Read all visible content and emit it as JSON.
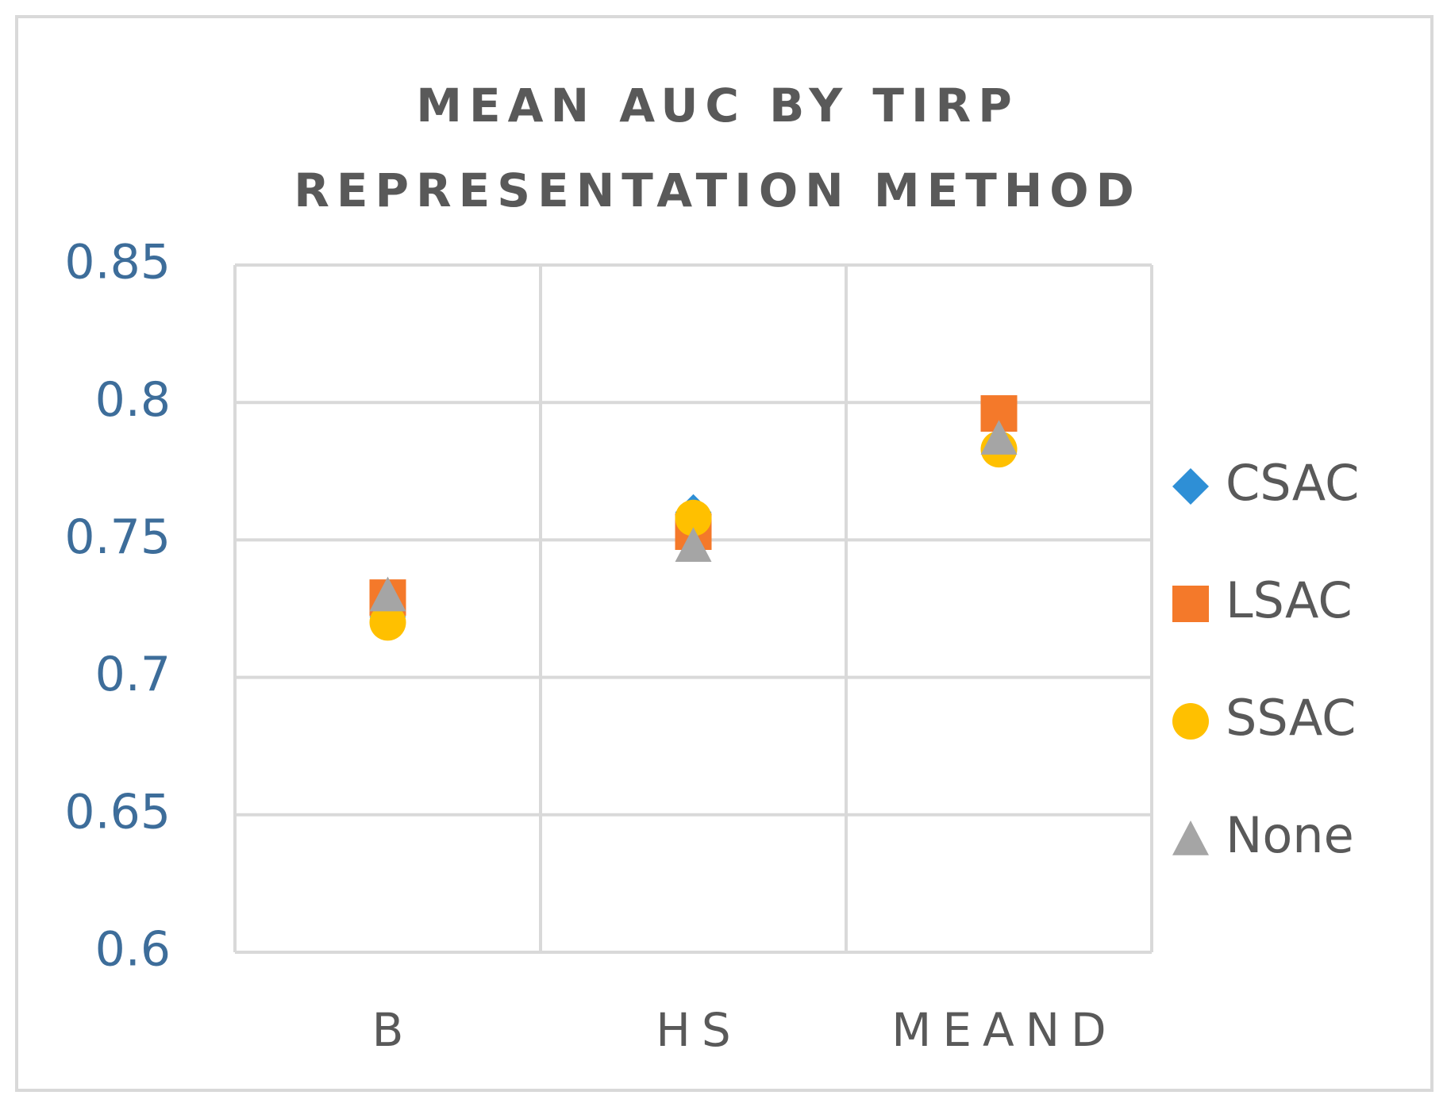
{
  "chart_data": {
    "type": "scatter",
    "title": [
      "MEAN AUC BY TIRP",
      "REPRESENTATION METHOD"
    ],
    "categories": [
      "B",
      "HS",
      "MEAND"
    ],
    "series": [
      {
        "name": "CSAC",
        "color": "#2e8fd6",
        "marker": "diamond",
        "values": [
          0.722,
          0.76,
          0.783
        ]
      },
      {
        "name": "LSAC",
        "color": "#f4792a",
        "marker": "square",
        "values": [
          0.729,
          0.753,
          0.796
        ]
      },
      {
        "name": "SSAC",
        "color": "#ffc000",
        "marker": "circle",
        "values": [
          0.72,
          0.758,
          0.783
        ]
      },
      {
        "name": "None",
        "color": "#a5a5a5",
        "marker": "triangle",
        "values": [
          0.73,
          0.748,
          0.787
        ]
      }
    ],
    "ylim": [
      0.6,
      0.85
    ],
    "yticks": [
      0.6,
      0.65,
      0.7,
      0.75,
      0.8,
      0.85
    ],
    "grid": true,
    "legend": "right"
  }
}
